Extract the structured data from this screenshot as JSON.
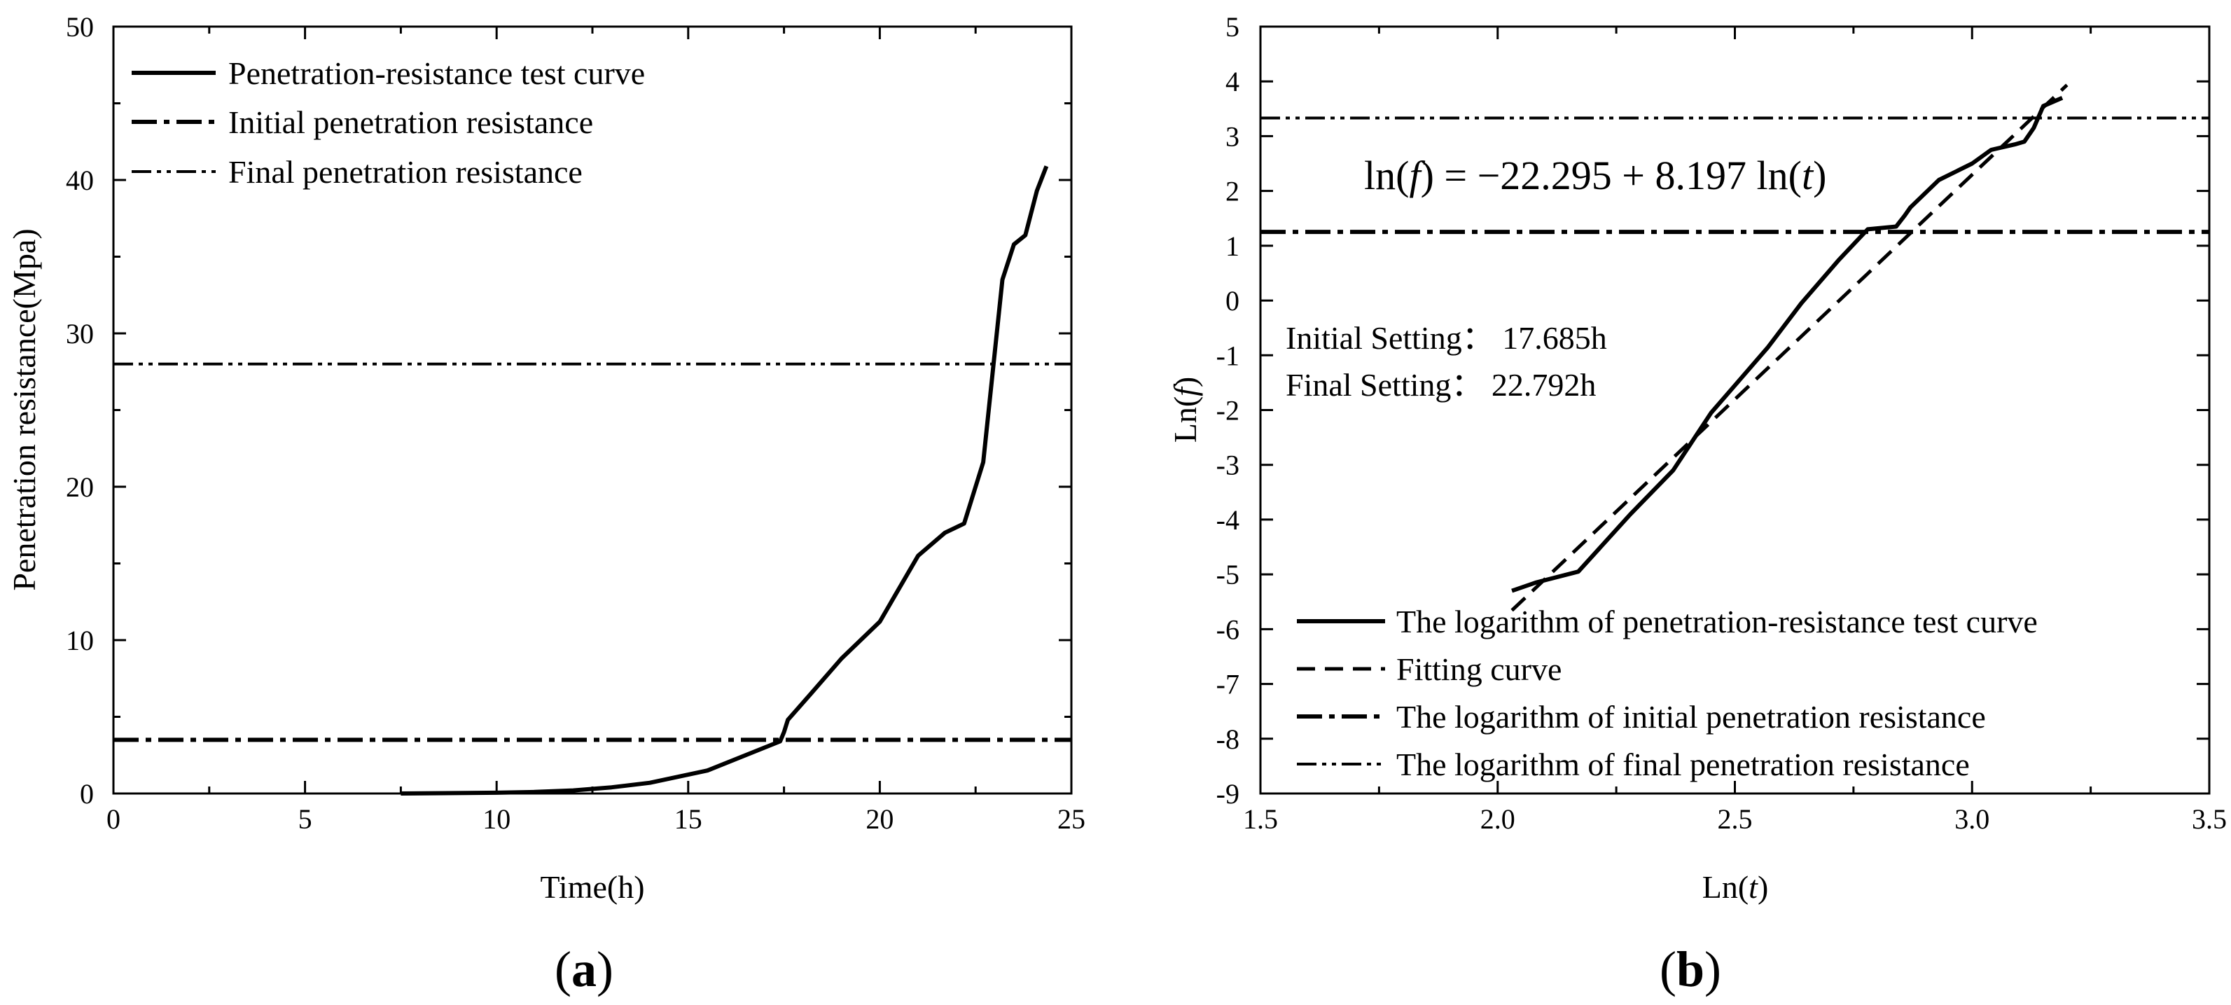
{
  "chart_data": [
    {
      "type": "line",
      "panel_label_open": "(",
      "panel_label": "a",
      "panel_label_close": ")",
      "xlabel": "Time(h)",
      "ylabel": "Penetration resistance(Mpa)",
      "xlim": [
        0,
        25
      ],
      "ylim": [
        0,
        50
      ],
      "xticks": [
        "0",
        "5",
        "10",
        "15",
        "20",
        "25"
      ],
      "yticks": [
        "0",
        "10",
        "20",
        "30",
        "40",
        "50"
      ],
      "legend_position": "top-left",
      "series": [
        {
          "name": "Penetration-resistance test curve",
          "style": "solid",
          "x": [
            7.5,
            10,
            11,
            12,
            13,
            14,
            15.5,
            17.2,
            17.4,
            17.5,
            17.6,
            18.2,
            19,
            20,
            21,
            21.7,
            22.2,
            22.7,
            23.2,
            23.5,
            23.8,
            24.1,
            24.35
          ],
          "y": [
            0,
            0.05,
            0.1,
            0.2,
            0.4,
            0.7,
            1.5,
            3.2,
            3.4,
            4.0,
            4.8,
            6.5,
            8.8,
            11.2,
            15.5,
            17.0,
            17.6,
            21.6,
            33.5,
            35.8,
            36.4,
            39.3,
            40.9
          ]
        },
        {
          "name": "Initial penetration resistance",
          "style": "dash-dot",
          "y_constant": 3.5
        },
        {
          "name": "Final penetration resistance",
          "style": "dash-dot-dot",
          "y_constant": 28
        }
      ]
    },
    {
      "type": "line",
      "panel_label_open": "(",
      "panel_label": "b",
      "panel_label_close": ")",
      "xlabel_parts": [
        "Ln(",
        "t",
        ")"
      ],
      "ylabel_parts": [
        "Ln(",
        "f",
        ")"
      ],
      "xlim": [
        1.5,
        3.5
      ],
      "ylim": [
        -9,
        5
      ],
      "xticks": [
        "1.5",
        "2.0",
        "2.5",
        "3.0",
        "3.5"
      ],
      "yticks": [
        "-9",
        "-8",
        "-7",
        "-6",
        "-5",
        "-4",
        "-3",
        "-2",
        "-1",
        "0",
        "1",
        "2",
        "3",
        "4",
        "5"
      ],
      "equation_parts": [
        "ln(",
        "f",
        ") = −22.295 + 8.197 ln(",
        "t",
        ")"
      ],
      "annotation_initial": "Initial Setting： 17.685h",
      "annotation_final": "Final  Setting： 22.792h",
      "legend_position": "bottom-left",
      "series": [
        {
          "name": "The logarithm of penetration-resistance test curve",
          "style": "solid",
          "x": [
            2.03,
            2.08,
            2.17,
            2.28,
            2.37,
            2.45,
            2.5,
            2.57,
            2.64,
            2.72,
            2.78,
            2.84,
            2.858,
            2.87,
            2.93,
            3.0,
            3.04,
            3.09,
            3.11,
            3.13,
            3.15,
            3.19
          ],
          "y": [
            -5.3,
            -5.15,
            -4.95,
            -3.9,
            -3.1,
            -2.05,
            -1.55,
            -0.85,
            -0.05,
            0.75,
            1.3,
            1.35,
            1.55,
            1.7,
            2.2,
            2.5,
            2.75,
            2.85,
            2.9,
            3.15,
            3.55,
            3.7
          ]
        },
        {
          "name": "Fitting curve",
          "style": "dashed",
          "x": [
            2.03,
            3.2
          ],
          "y": [
            -5.656,
            3.935
          ]
        },
        {
          "name": "The logarithm of initial penetration resistance",
          "style": "dash-dot",
          "y_constant": 1.253
        },
        {
          "name": "The logarithm of final penetration resistance",
          "style": "dash-dot-dot",
          "y_constant": 3.332
        }
      ]
    }
  ]
}
